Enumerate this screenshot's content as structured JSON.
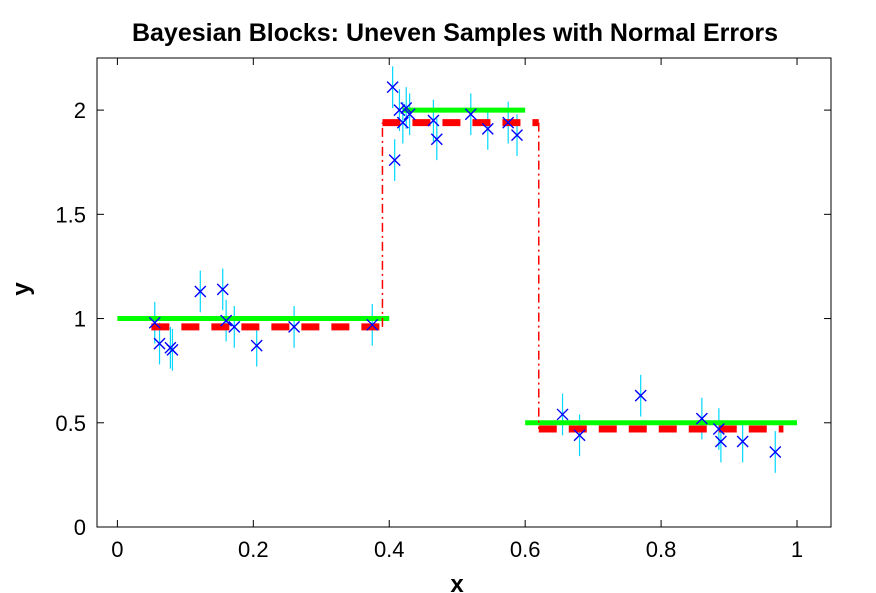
{
  "chart_data": {
    "type": "line",
    "title": "Bayesian Blocks: Uneven Samples with Normal Errors",
    "xlabel": "x",
    "ylabel": "y",
    "xlim": [
      -0.03,
      1.05
    ],
    "ylim": [
      0,
      2.25
    ],
    "xticks": [
      0,
      0.2,
      0.4,
      0.6,
      0.8,
      1
    ],
    "yticks": [
      0,
      0.5,
      1,
      1.5,
      2
    ],
    "xtick_labels": [
      "0",
      "0.2",
      "0.4",
      "0.6",
      "0.8",
      "1"
    ],
    "ytick_labels": [
      "0",
      "0.5",
      "1",
      "1.5",
      "2"
    ],
    "grid": false,
    "series": [
      {
        "kind": "steps",
        "color": "#00ff00",
        "style": "solid",
        "steps": [
          {
            "x0": 0.0,
            "x1": 0.4,
            "y": 1.0
          },
          {
            "x0": 0.42,
            "x1": 0.6,
            "y": 2.0
          },
          {
            "x0": 0.6,
            "x1": 1.0,
            "y": 0.5
          }
        ]
      },
      {
        "kind": "blocks",
        "color": "#ff0000",
        "style": "dashed",
        "x": [
          0.05,
          0.39,
          0.39,
          0.62,
          0.62,
          0.98
        ],
        "y": [
          0.96,
          0.96,
          1.94,
          1.94,
          0.47,
          0.47
        ]
      },
      {
        "kind": "scatter",
        "marker": "x",
        "color": "#0000ff",
        "error_color": "#00d8ff",
        "points": [
          {
            "x": 0.055,
            "y": 0.98,
            "err": 0.1
          },
          {
            "x": 0.062,
            "y": 0.88,
            "err": 0.1
          },
          {
            "x": 0.078,
            "y": 0.86,
            "err": 0.1
          },
          {
            "x": 0.081,
            "y": 0.85,
            "err": 0.1
          },
          {
            "x": 0.122,
            "y": 1.13,
            "err": 0.1
          },
          {
            "x": 0.155,
            "y": 1.14,
            "err": 0.1
          },
          {
            "x": 0.16,
            "y": 0.99,
            "err": 0.1
          },
          {
            "x": 0.172,
            "y": 0.96,
            "err": 0.1
          },
          {
            "x": 0.205,
            "y": 0.87,
            "err": 0.1
          },
          {
            "x": 0.26,
            "y": 0.96,
            "err": 0.1
          },
          {
            "x": 0.375,
            "y": 0.97,
            "err": 0.1
          },
          {
            "x": 0.405,
            "y": 2.11,
            "err": 0.1
          },
          {
            "x": 0.408,
            "y": 1.76,
            "err": 0.1
          },
          {
            "x": 0.415,
            "y": 2.0,
            "err": 0.1
          },
          {
            "x": 0.42,
            "y": 1.94,
            "err": 0.1
          },
          {
            "x": 0.425,
            "y": 2.01,
            "err": 0.1
          },
          {
            "x": 0.43,
            "y": 1.98,
            "err": 0.1
          },
          {
            "x": 0.465,
            "y": 1.95,
            "err": 0.1
          },
          {
            "x": 0.47,
            "y": 1.86,
            "err": 0.1
          },
          {
            "x": 0.52,
            "y": 1.98,
            "err": 0.1
          },
          {
            "x": 0.545,
            "y": 1.91,
            "err": 0.1
          },
          {
            "x": 0.575,
            "y": 1.94,
            "err": 0.1
          },
          {
            "x": 0.588,
            "y": 1.88,
            "err": 0.1
          },
          {
            "x": 0.655,
            "y": 0.54,
            "err": 0.1
          },
          {
            "x": 0.68,
            "y": 0.44,
            "err": 0.1
          },
          {
            "x": 0.77,
            "y": 0.63,
            "err": 0.1
          },
          {
            "x": 0.86,
            "y": 0.52,
            "err": 0.1
          },
          {
            "x": 0.885,
            "y": 0.47,
            "err": 0.1
          },
          {
            "x": 0.888,
            "y": 0.41,
            "err": 0.1
          },
          {
            "x": 0.92,
            "y": 0.41,
            "err": 0.1
          },
          {
            "x": 0.968,
            "y": 0.36,
            "err": 0.1
          }
        ]
      }
    ]
  }
}
